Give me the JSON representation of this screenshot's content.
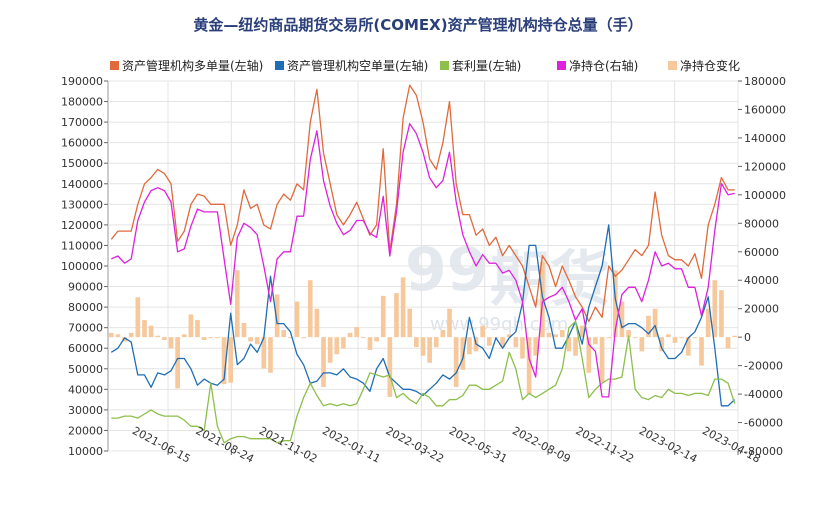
{
  "chart_data": {
    "type": "line",
    "title": "黄金—纽约商品期货交易所(COMEX)资产管理机构持仓总量（手）",
    "watermark": {
      "brand": "99",
      "brand_cn": "期货",
      "url": "www.99qh.com"
    },
    "x_ticks": [
      "2021-06-15",
      "2021-08-24",
      "2021-11-02",
      "2022-01-11",
      "2022-03-22",
      "2022-05-31",
      "2022-08-09",
      "2022-11-22",
      "2023-02-14",
      "2023-04-18"
    ],
    "left_axis": {
      "ticks": [
        "190000",
        "180000",
        "170000",
        "160000",
        "150000",
        "140000",
        "130000",
        "120000",
        "110000",
        "100000",
        "90000",
        "80000",
        "70000",
        "60000",
        "50000",
        "40000",
        "30000",
        "20000",
        "10000"
      ],
      "ylim": [
        10000,
        190000
      ]
    },
    "right_axis": {
      "ticks": [
        "180000",
        "160000",
        "140000",
        "120000",
        "100000",
        "80000",
        "60000",
        "40000",
        "20000",
        "0",
        "-20000",
        "-40000",
        "-60000",
        "-80000"
      ],
      "ylim": [
        -80000,
        180000
      ]
    },
    "grid": true,
    "legend_position": "top",
    "colors": {
      "long": "#e06a3c",
      "short": "#1f6eb5",
      "spread": "#8dbf4a",
      "net": "#dd22dd",
      "change": "#f6c89c"
    },
    "series": [
      {
        "name": "资产管理机构多单量(左轴)",
        "axis": "left",
        "kind": "line",
        "color": "#e06a3c",
        "values": [
          113000,
          117000,
          117000,
          117000,
          130000,
          140000,
          143000,
          147000,
          145000,
          140000,
          112000,
          117000,
          130000,
          135000,
          134000,
          130000,
          130000,
          130000,
          110000,
          120000,
          137000,
          128000,
          130000,
          120000,
          118000,
          130000,
          135000,
          132000,
          140000,
          137000,
          170000,
          186000,
          155000,
          140000,
          125000,
          120000,
          125000,
          131000,
          123000,
          115000,
          120000,
          157000,
          107000,
          130000,
          172000,
          188000,
          183000,
          170000,
          152000,
          147000,
          160000,
          180000,
          140000,
          125000,
          125000,
          115000,
          118000,
          110000,
          114000,
          105000,
          110000,
          105000,
          100000,
          90000,
          80000,
          105000,
          100000,
          90000,
          100000,
          93000,
          85000,
          80000,
          73000,
          80000,
          75000,
          100000,
          95000,
          98000,
          103000,
          108000,
          105000,
          110000,
          136000,
          115000,
          105000,
          103000,
          103000,
          100000,
          106000,
          94000,
          120000,
          130000,
          143000,
          137000,
          137000
        ]
      },
      {
        "name": "资产管理机构空单量(左轴)",
        "axis": "left",
        "kind": "line",
        "color": "#1f6eb5",
        "values": [
          58000,
          60000,
          65000,
          63000,
          47000,
          47000,
          41000,
          48000,
          47000,
          49000,
          55000,
          55000,
          50000,
          42000,
          45000,
          43000,
          42000,
          45000,
          77000,
          52000,
          55000,
          62000,
          58000,
          65000,
          95000,
          72000,
          72000,
          68000,
          57000,
          52000,
          43000,
          44000,
          48000,
          48000,
          47000,
          50000,
          46000,
          45000,
          43000,
          39000,
          50000,
          55000,
          46000,
          43000,
          40000,
          40000,
          39000,
          37000,
          40000,
          43000,
          47000,
          45000,
          48000,
          55000,
          75000,
          62000,
          60000,
          55000,
          65000,
          60000,
          65000,
          68000,
          82000,
          110000,
          110000,
          85000,
          75000,
          60000,
          60000,
          66000,
          73000,
          62000,
          80000,
          90000,
          100000,
          120000,
          84000,
          70000,
          72000,
          72000,
          70000,
          67000,
          71000,
          60000,
          55000,
          55000,
          58000,
          65000,
          68000,
          75000,
          85000,
          60000,
          32000,
          32000,
          35000
        ]
      },
      {
        "name": "套利量(左轴)",
        "axis": "left",
        "kind": "line",
        "color": "#8dbf4a",
        "values": [
          26000,
          26000,
          27000,
          27000,
          26000,
          28000,
          30000,
          28000,
          27000,
          27000,
          27000,
          25000,
          22000,
          22000,
          20000,
          43000,
          22000,
          14000,
          16000,
          17000,
          17000,
          16000,
          16000,
          16000,
          16000,
          14000,
          15000,
          15000,
          27000,
          36000,
          43000,
          37000,
          32000,
          33000,
          32000,
          33000,
          32000,
          33000,
          40000,
          48000,
          47000,
          46000,
          47000,
          36000,
          38000,
          35000,
          33000,
          38000,
          36000,
          32000,
          32000,
          35000,
          35000,
          37000,
          42000,
          42000,
          40000,
          40000,
          42000,
          44000,
          58000,
          50000,
          35000,
          38000,
          36000,
          38000,
          40000,
          42000,
          50000,
          70000,
          73000,
          55000,
          36000,
          40000,
          43000,
          45000,
          45000,
          46000,
          66000,
          40000,
          36000,
          35000,
          37000,
          36000,
          40000,
          38000,
          38000,
          37000,
          38000,
          38000,
          37000,
          45000,
          45000,
          43000,
          33000
        ]
      },
      {
        "name": "净持仓(右轴)",
        "axis": "right",
        "kind": "line",
        "color": "#dd22dd",
        "values": [
          55000,
          57000,
          52000,
          55000,
          82000,
          95000,
          103000,
          105000,
          103000,
          95000,
          60000,
          62000,
          78000,
          90000,
          88000,
          88000,
          88000,
          55000,
          23000,
          70000,
          80000,
          77000,
          72000,
          50000,
          25000,
          55000,
          60000,
          60000,
          85000,
          85000,
          125000,
          145000,
          110000,
          92000,
          80000,
          72000,
          75000,
          82000,
          82000,
          73000,
          70000,
          99000,
          57000,
          88000,
          130000,
          150000,
          143000,
          130000,
          112000,
          105000,
          110000,
          130000,
          95000,
          72000,
          60000,
          50000,
          58000,
          52000,
          52000,
          45000,
          47000,
          40000,
          25000,
          -15000,
          -28000,
          25000,
          28000,
          30000,
          35000,
          25000,
          12000,
          20000,
          -5000,
          -10000,
          -42000,
          -42000,
          5000,
          30000,
          35000,
          35000,
          25000,
          40000,
          60000,
          50000,
          52000,
          48000,
          48000,
          35000,
          35000,
          15000,
          35000,
          75000,
          108000,
          100000,
          101000
        ]
      },
      {
        "name": "净持仓变化",
        "axis": "right",
        "kind": "bar",
        "color": "#f6c89c",
        "values": [
          3000,
          2000,
          -3000,
          3000,
          28000,
          12000,
          8000,
          1000,
          -2000,
          -8000,
          -36000,
          2000,
          16000,
          12000,
          -2000,
          0,
          0,
          -33000,
          -32000,
          47000,
          10000,
          -3000,
          -5000,
          -22000,
          -25000,
          30000,
          5000,
          0,
          25000,
          0,
          40000,
          20000,
          -35000,
          -18000,
          -12000,
          -8000,
          3000,
          7000,
          0,
          -9000,
          -3000,
          29000,
          -42000,
          31000,
          42000,
          20000,
          -7000,
          -13000,
          -18000,
          -7000,
          5000,
          20000,
          -35000,
          -23000,
          -12000,
          -10000,
          8000,
          -6000,
          0,
          -7000,
          2000,
          -7000,
          -15000,
          -40000,
          -13000,
          53000,
          3000,
          2000,
          5000,
          -10000,
          -13000,
          8000,
          -25000,
          -5000,
          -32000,
          0,
          47000,
          25000,
          5000,
          0,
          -10000,
          15000,
          20000,
          -10000,
          2000,
          -4000,
          0,
          -13000,
          0,
          -20000,
          20000,
          40000,
          33000,
          -8000,
          1000
        ]
      }
    ]
  }
}
